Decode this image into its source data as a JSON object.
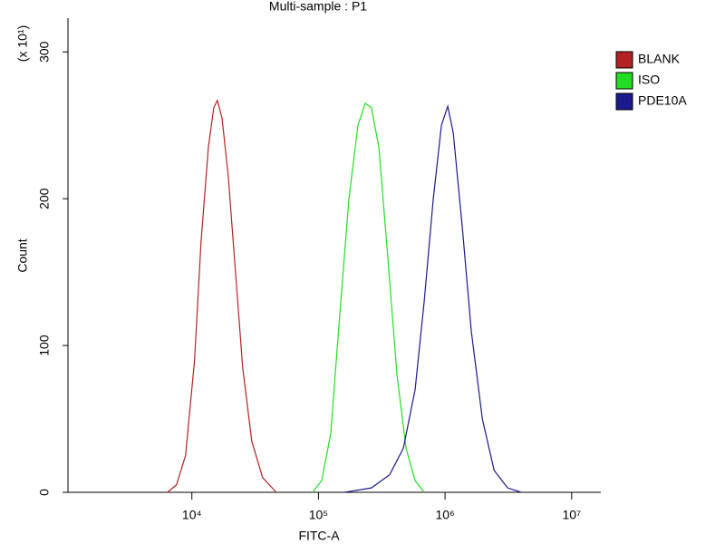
{
  "chart_data": {
    "type": "line",
    "title": "Multi-sample : P1",
    "x_label": "FITC-A",
    "y_label": "Count",
    "y_multiplier": "(x 10¹)",
    "log_x": true,
    "xlim": [
      1050,
      17000000
    ],
    "ylim": [
      0,
      323
    ],
    "xticks": [
      {
        "value": 10000,
        "label": "10⁴"
      },
      {
        "value": 100000,
        "label": "10⁵"
      },
      {
        "value": 1000000,
        "label": "10⁶"
      },
      {
        "value": 10000000,
        "label": "10⁷"
      }
    ],
    "yticks": [
      0,
      100,
      200,
      300
    ],
    "series": [
      {
        "name": "BLANK",
        "color": "#b22222",
        "x": [
          6400,
          7550,
          8910,
          10500,
          11800,
          13500,
          14900,
          15900,
          17300,
          19400,
          22100,
          25200,
          29700,
          36200,
          46400
        ],
        "values": [
          0,
          5,
          25,
          90,
          170,
          235,
          262,
          267,
          255,
          215,
          150,
          85,
          35,
          10,
          0
        ]
      },
      {
        "name": "ISO",
        "color": "#22dd22",
        "x": [
          89800,
          106000,
          125000,
          147000,
          174000,
          205000,
          234000,
          262000,
          300000,
          353000,
          417000,
          492000,
          580000,
          684000
        ],
        "values": [
          0,
          8,
          40,
          120,
          200,
          250,
          265,
          262,
          235,
          160,
          80,
          30,
          8,
          0
        ]
      },
      {
        "name": "PDE10A",
        "color": "#1a1a8c",
        "x": [
          160000,
          262000,
          365000,
          468000,
          580000,
          684000,
          807000,
          936000,
          1050000,
          1160000,
          1370000,
          1610000,
          1970000,
          2440000,
          3120000,
          4000000
        ],
        "values": [
          0,
          3,
          12,
          30,
          70,
          130,
          200,
          250,
          263,
          245,
          180,
          110,
          50,
          15,
          3,
          0
        ]
      }
    ]
  }
}
